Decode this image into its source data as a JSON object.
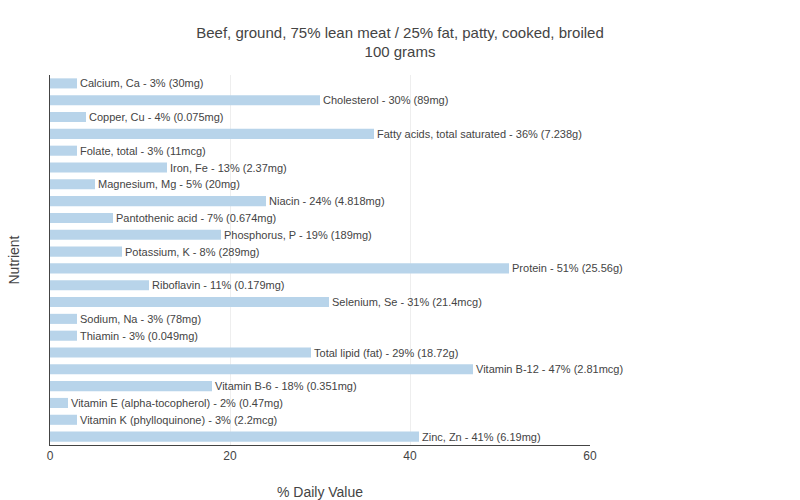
{
  "chart_data": {
    "type": "bar",
    "orientation": "horizontal",
    "title": "Beef, ground, 75% lean meat / 25% fat, patty, cooked, broiled\n100 grams",
    "xlabel": "% Daily Value",
    "ylabel": "Nutrient",
    "categories": [
      "Calcium, Ca - 3% (30mg)",
      "Cholesterol - 30% (89mg)",
      "Copper, Cu - 4% (0.075mg)",
      "Fatty acids, total saturated - 36% (7.238g)",
      "Folate, total - 3% (11mcg)",
      "Iron, Fe - 13% (2.37mg)",
      "Magnesium, Mg - 5% (20mg)",
      "Niacin - 24% (4.818mg)",
      "Pantothenic acid - 7% (0.674mg)",
      "Phosphorus, P - 19% (189mg)",
      "Potassium, K - 8% (289mg)",
      "Protein - 51% (25.56g)",
      "Riboflavin - 11% (0.179mg)",
      "Selenium, Se - 31% (21.4mcg)",
      "Sodium, Na - 3% (78mg)",
      "Thiamin - 3% (0.049mg)",
      "Total lipid (fat) - 29% (18.72g)",
      "Vitamin B-12 - 47% (2.81mcg)",
      "Vitamin B-6 - 18% (0.351mg)",
      "Vitamin E (alpha-tocopherol) - 2% (0.47mg)",
      "Vitamin K (phylloquinone) - 3% (2.2mcg)",
      "Zinc, Zn - 41% (6.19mg)"
    ],
    "values": [
      3,
      30,
      4,
      36,
      3,
      13,
      5,
      24,
      7,
      19,
      8,
      51,
      11,
      31,
      3,
      3,
      29,
      47,
      18,
      2,
      3,
      41
    ],
    "color": "#b8d4ea",
    "xlim": [
      0,
      60
    ],
    "xticks": [
      0,
      20,
      40,
      60
    ],
    "grid": true,
    "tick_labels": "x"
  }
}
